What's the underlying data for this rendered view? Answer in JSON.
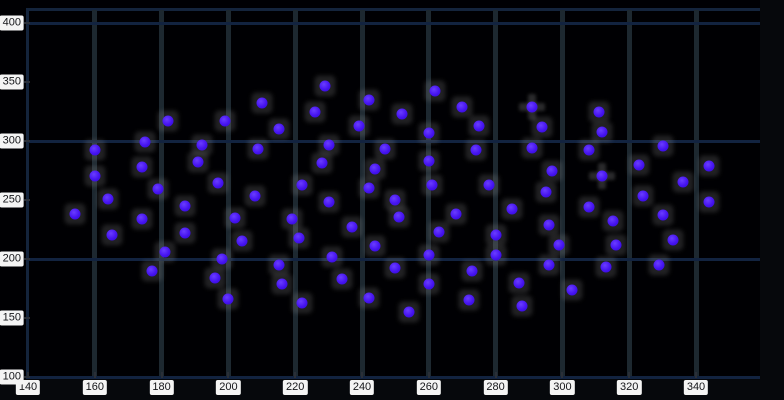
{
  "chart_data": {
    "type": "scatter",
    "title": "",
    "xlabel": "",
    "ylabel": "",
    "xlim": [
      140,
      359
    ],
    "ylim": [
      100,
      408
    ],
    "x_ticks": [
      140,
      160,
      180,
      200,
      220,
      240,
      260,
      280,
      300,
      320,
      340
    ],
    "y_ticks": [
      400,
      350,
      300,
      250,
      200,
      150,
      100
    ],
    "grid_horizontal_at": [
      400,
      300,
      200,
      100
    ],
    "grid_vertical_at": [
      160,
      180,
      200,
      220,
      240,
      260,
      280,
      300,
      320,
      340
    ],
    "legend_position": "none",
    "marker_shape": "circle-with-square-glow",
    "marker_color": "#4513f0",
    "points": [
      [
        182,
        317
      ],
      [
        199,
        317
      ],
      [
        210,
        332
      ],
      [
        160,
        292
      ],
      [
        175,
        299
      ],
      [
        192,
        297
      ],
      [
        209,
        293
      ],
      [
        191,
        282
      ],
      [
        174,
        278
      ],
      [
        160,
        270
      ],
      [
        197,
        264
      ],
      [
        179,
        259
      ],
      [
        164,
        251
      ],
      [
        208,
        253
      ],
      [
        187,
        245
      ],
      [
        154,
        238
      ],
      [
        165,
        220
      ],
      [
        174,
        234
      ],
      [
        181,
        206
      ],
      [
        177,
        190
      ],
      [
        187,
        222
      ],
      [
        202,
        235
      ],
      [
        204,
        215
      ],
      [
        198,
        200
      ],
      [
        196,
        184
      ],
      [
        200,
        166
      ],
      [
        229,
        347
      ],
      [
        242,
        335
      ],
      [
        226,
        325
      ],
      [
        252,
        323
      ],
      [
        262,
        342
      ],
      [
        270,
        329
      ],
      [
        239,
        313
      ],
      [
        215,
        310
      ],
      [
        260,
        307
      ],
      [
        275,
        313
      ],
      [
        230,
        297
      ],
      [
        247,
        293
      ],
      [
        228,
        281
      ],
      [
        260,
        283
      ],
      [
        274,
        292
      ],
      [
        244,
        276
      ],
      [
        222,
        263
      ],
      [
        242,
        260
      ],
      [
        261,
        263
      ],
      [
        278,
        263
      ],
      [
        230,
        248
      ],
      [
        219,
        234
      ],
      [
        250,
        250
      ],
      [
        251,
        236
      ],
      [
        237,
        227
      ],
      [
        221,
        218
      ],
      [
        244,
        211
      ],
      [
        231,
        202
      ],
      [
        215,
        195
      ],
      [
        250,
        192
      ],
      [
        216,
        179
      ],
      [
        234,
        183
      ],
      [
        222,
        163
      ],
      [
        242,
        167
      ],
      [
        254,
        155
      ],
      [
        260,
        203
      ],
      [
        260,
        179
      ],
      [
        268,
        238
      ],
      [
        263,
        223
      ],
      [
        273,
        190
      ],
      [
        272,
        165
      ],
      [
        280,
        220
      ],
      [
        280,
        203
      ],
      [
        291,
        329,
        "plus"
      ],
      [
        311,
        325
      ],
      [
        294,
        312
      ],
      [
        312,
        308
      ],
      [
        291,
        294
      ],
      [
        308,
        292
      ],
      [
        330,
        296
      ],
      [
        297,
        275
      ],
      [
        312,
        270,
        "plus"
      ],
      [
        323,
        280
      ],
      [
        344,
        279
      ],
      [
        336,
        265
      ],
      [
        295,
        257
      ],
      [
        324,
        253
      ],
      [
        285,
        242
      ],
      [
        296,
        229
      ],
      [
        299,
        212
      ],
      [
        296,
        195
      ],
      [
        308,
        244
      ],
      [
        315,
        232
      ],
      [
        316,
        212
      ],
      [
        313,
        193
      ],
      [
        303,
        174
      ],
      [
        330,
        237
      ],
      [
        333,
        216
      ],
      [
        329,
        195
      ],
      [
        344,
        248
      ],
      [
        287,
        180
      ],
      [
        288,
        160
      ]
    ]
  },
  "colors": {
    "outer_background": "#06080c",
    "plot_background": "#000003",
    "grid_vertical": "#1d2830",
    "grid_horizontal": "#122340",
    "axis": "#14243c",
    "marker": "#4513f0",
    "marker_glow": "#3a3a3a",
    "tick_label_bg": "#f4f4f4",
    "tick_label_text": "#15161a"
  }
}
